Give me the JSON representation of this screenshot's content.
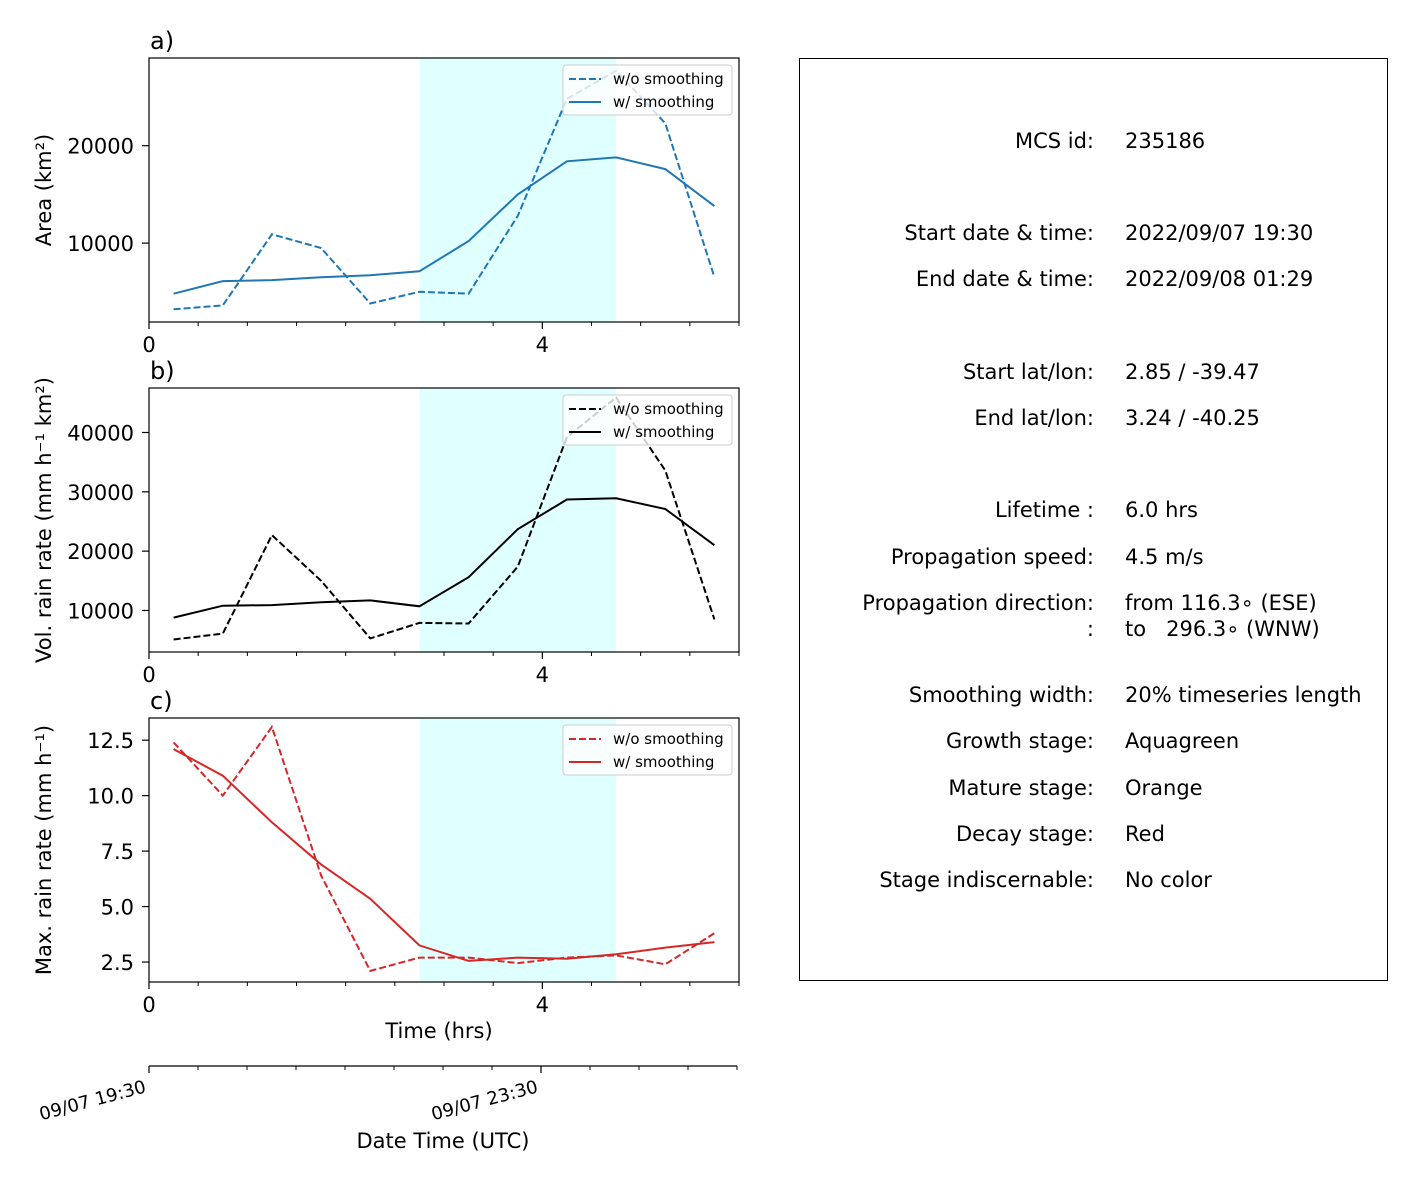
{
  "chart_data": [
    {
      "type": "line",
      "panel_label": "a)",
      "xlabel": "",
      "ylabel": "Area  (km²)",
      "xlim": [
        0,
        6
      ],
      "ylim": [
        1900,
        29000
      ],
      "xticks": [
        0,
        4
      ],
      "yticks": [
        10000,
        20000
      ],
      "ytick_labels": [
        "10000",
        "20000"
      ],
      "shaded_region": [
        2.75,
        4.75
      ],
      "color": "#1f77b4",
      "legend": "top-right",
      "grid": false,
      "x": [
        0.25,
        0.75,
        1.25,
        1.75,
        2.25,
        2.75,
        3.25,
        3.75,
        4.25,
        4.75,
        5.25,
        5.75
      ],
      "series": [
        {
          "name": "w/o smoothing",
          "style": "dashed",
          "values": [
            3200,
            3600,
            10900,
            9500,
            3800,
            5000,
            4800,
            12800,
            24800,
            27700,
            22300,
            6500
          ]
        },
        {
          "name": "w/ smoothing",
          "style": "solid",
          "values": [
            4800,
            6100,
            6200,
            6500,
            6700,
            7100,
            10200,
            15000,
            18400,
            18800,
            17600,
            13800
          ]
        }
      ]
    },
    {
      "type": "line",
      "panel_label": "b)",
      "xlabel": "",
      "ylabel": "Vol. rain rate (mm h⁻¹ km²)",
      "xlim": [
        0,
        6
      ],
      "ylim": [
        3000,
        47500
      ],
      "xticks": [
        0,
        4
      ],
      "yticks": [
        10000,
        20000,
        30000,
        40000
      ],
      "ytick_labels": [
        "10000",
        "20000",
        "30000",
        "40000"
      ],
      "shaded_region": [
        2.75,
        4.75
      ],
      "color": "#000000",
      "legend": "top-right",
      "grid": false,
      "x": [
        0.25,
        0.75,
        1.25,
        1.75,
        2.25,
        2.75,
        3.25,
        3.75,
        4.25,
        4.75,
        5.25,
        5.75
      ],
      "series": [
        {
          "name": "w/o smoothing",
          "style": "dashed",
          "values": [
            5100,
            6100,
            22700,
            15000,
            5300,
            7900,
            7800,
            17400,
            39200,
            45900,
            33600,
            8500
          ]
        },
        {
          "name": "w/ smoothing",
          "style": "solid",
          "values": [
            8800,
            10800,
            10900,
            11400,
            11700,
            10700,
            15600,
            23700,
            28700,
            28900,
            27100,
            21000
          ]
        }
      ]
    },
    {
      "type": "line",
      "panel_label": "c)",
      "xlabel": "Time (hrs)",
      "ylabel": "Max. rain rate  (mm h⁻¹)",
      "xlim": [
        0,
        6
      ],
      "ylim": [
        1.6,
        13.5
      ],
      "xticks": [
        0,
        4
      ],
      "yticks": [
        2.5,
        5.0,
        7.5,
        10.0,
        12.5
      ],
      "ytick_labels": [
        "2.5",
        "5.0",
        "7.5",
        "10.0",
        "12.5"
      ],
      "shaded_region": [
        2.75,
        4.75
      ],
      "color": "#d62728",
      "legend": "top-right",
      "grid": false,
      "x": [
        0.25,
        0.75,
        1.25,
        1.75,
        2.25,
        2.75,
        3.25,
        3.75,
        4.25,
        4.75,
        5.25,
        5.75
      ],
      "series": [
        {
          "name": "w/o smoothing",
          "style": "dashed",
          "values": [
            12.4,
            10.0,
            13.1,
            6.4,
            2.1,
            2.7,
            2.7,
            2.45,
            2.7,
            2.8,
            2.4,
            3.8
          ]
        },
        {
          "name": "w/ smoothing",
          "style": "solid",
          "values": [
            12.1,
            10.9,
            8.8,
            6.9,
            5.35,
            3.25,
            2.55,
            2.7,
            2.65,
            2.85,
            3.15,
            3.4
          ]
        }
      ]
    }
  ],
  "secondary_axis": {
    "label": "Date Time (UTC)",
    "xlim": [
      0,
      6
    ],
    "ticks": [
      {
        "value": 0,
        "label": "09/07 19:30"
      },
      {
        "value": 4,
        "label": "09/07 23:30"
      }
    ]
  },
  "info": [
    {
      "label": "MCS id:",
      "value": "235186"
    },
    {
      "label": "Start date & time:",
      "value": "2022/09/07 19:30"
    },
    {
      "label": "End date & time:",
      "value": "2022/09/08 01:29"
    },
    {
      "label": "Start lat/lon:",
      "value": "2.85 / -39.47"
    },
    {
      "label": "End lat/lon:",
      "value": "3.24 / -40.25"
    },
    {
      "label": "Lifetime :",
      "value": "6.0 hrs"
    },
    {
      "label": "Propagation speed:",
      "value": "4.5 m/s"
    },
    {
      "label": "Propagation direction:",
      "value": "from 116.3∘ (ESE)"
    },
    {
      "label": ":",
      "value": "to   296.3∘ (WNW)"
    },
    {
      "label": "Smoothing width:",
      "value": "20% timeseries length"
    },
    {
      "label": "Growth stage:",
      "value": "Aquagreen"
    },
    {
      "label": "Mature stage:",
      "value": "Orange"
    },
    {
      "label": "Decay stage:",
      "value": "Red"
    },
    {
      "label": "Stage indiscernable:",
      "value": "No color"
    }
  ],
  "colors": {
    "shade": "#e0ffff"
  }
}
